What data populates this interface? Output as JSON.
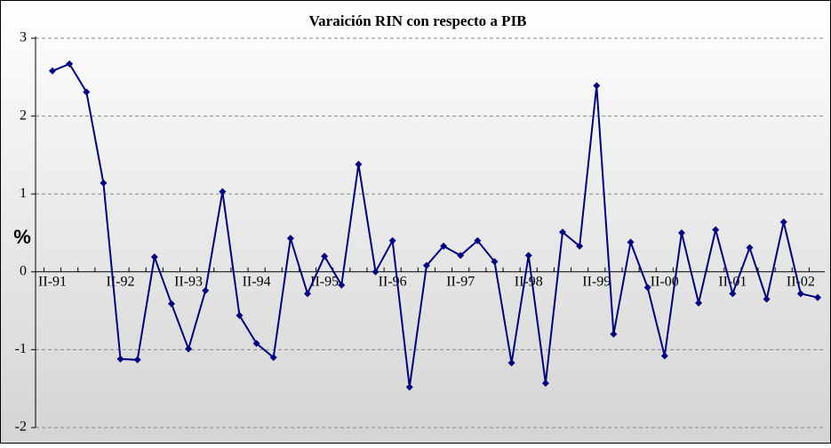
{
  "chart_data": {
    "type": "line",
    "title": "Varaición RIN con respecto a PIB",
    "ylabel": "%",
    "categories": [
      "II-91",
      null,
      null,
      null,
      "II-92",
      null,
      null,
      null,
      "II-93",
      null,
      null,
      null,
      "II-94",
      null,
      null,
      null,
      "II-95",
      null,
      null,
      null,
      "II-96",
      null,
      null,
      null,
      "II-97",
      null,
      null,
      null,
      "II-98",
      null,
      null,
      null,
      "II-99",
      null,
      null,
      null,
      "II-00",
      null,
      null,
      null,
      "II-01",
      null,
      null,
      null,
      "II-02",
      null
    ],
    "series": [
      {
        "name": "Variación RIN",
        "color": "#000080",
        "values": [
          2.58,
          2.67,
          2.31,
          1.14,
          -1.12,
          -1.13,
          0.19,
          -0.41,
          -0.99,
          -0.24,
          1.03,
          -0.56,
          -0.92,
          -1.1,
          0.43,
          -0.28,
          0.2,
          -0.17,
          1.38,
          0.0,
          0.4,
          -1.48,
          0.08,
          0.33,
          0.21,
          0.4,
          0.13,
          -1.17,
          0.21,
          -1.43,
          0.51,
          0.33,
          2.39,
          -0.8,
          0.38,
          -0.2,
          -1.08,
          0.5,
          -0.4,
          0.54,
          -0.28,
          0.31,
          -0.35,
          0.64,
          -0.28,
          -0.33
        ]
      }
    ],
    "ylim": [
      -2,
      3
    ],
    "yticks": [
      -2,
      -1,
      0,
      1,
      2,
      3
    ],
    "grid": true
  }
}
